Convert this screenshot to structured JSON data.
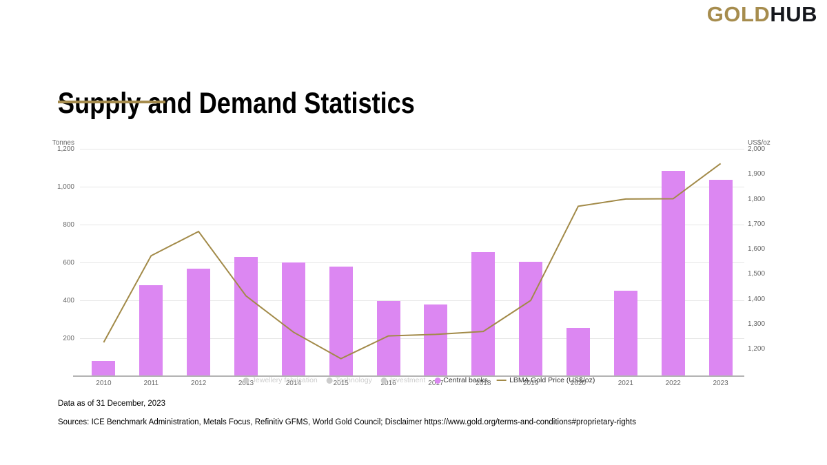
{
  "logo": {
    "part1": "GOLD",
    "part2": "HUB"
  },
  "title": "Supply and Demand Statistics",
  "footer": {
    "data_as_of": "Data as of 31 December, 2023",
    "sources": "Sources: ICE Benchmark Administration, Metals Focus, Refinitiv GFMS, World Gold Council; Disclaimer https://www.gold.org/terms-and-conditions#proprietary-rights"
  },
  "colors": {
    "bar": "#DC87F2",
    "line": "#A28A48",
    "brand_gold": "#A68C4D",
    "grid": "#e6e6e6",
    "axis_line": "#b3b3b3",
    "tick_text": "#666666",
    "legend_disabled": "#cccccc",
    "legend_active": "#333333"
  },
  "chart_data": {
    "type": "bar",
    "subtype": "column-with-line-overlay",
    "categories": [
      "2010",
      "2011",
      "2012",
      "2013",
      "2014",
      "2015",
      "2016",
      "2017",
      "2018",
      "2019",
      "2020",
      "2021",
      "2022",
      "2023"
    ],
    "left_axis": {
      "label": "Tonnes",
      "min": 0,
      "max": 1200,
      "ticks": [
        200,
        400,
        600,
        800,
        1000,
        1200
      ]
    },
    "right_axis": {
      "label": "US$/oz",
      "min": 1090,
      "max": 2000,
      "ticks": [
        1200,
        1300,
        1400,
        1500,
        1600,
        1700,
        1800,
        1900,
        2000
      ]
    },
    "grid": true,
    "legend_position": "bottom-center",
    "series": [
      {
        "name": "Jewellery fabrication",
        "type": "column",
        "visible": false
      },
      {
        "name": "Technology",
        "type": "column",
        "visible": false
      },
      {
        "name": "Investment",
        "type": "column",
        "visible": false
      },
      {
        "name": "Central banks",
        "type": "column",
        "axis": "left",
        "visible": true,
        "values": [
          79,
          481,
          569,
          630,
          601,
          580,
          395,
          379,
          656,
          605,
          255,
          450,
          1082,
          1037
        ]
      },
      {
        "name": "LBMA Gold Price (US$/oz)",
        "type": "line",
        "axis": "right",
        "visible": true,
        "values": [
          1225,
          1572,
          1669,
          1411,
          1266,
          1160,
          1251,
          1257,
          1269,
          1393,
          1770,
          1799,
          1800,
          1941
        ]
      }
    ]
  }
}
